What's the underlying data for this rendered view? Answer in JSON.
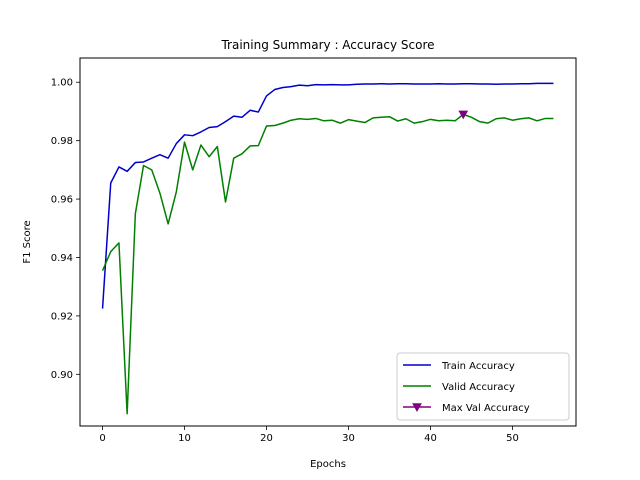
{
  "chart_data": {
    "type": "line",
    "title": "Training Summary : Accuracy Score",
    "xlabel": "Epochs",
    "ylabel": "F1 Score",
    "xlim": [
      -2.75,
      57.75
    ],
    "ylim": [
      0.8823,
      1.0083
    ],
    "xticks": [
      0,
      10,
      20,
      30,
      40,
      50
    ],
    "yticks": [
      0.9,
      0.92,
      0.94,
      0.96,
      0.98,
      1.0
    ],
    "ytick_labels": [
      "0.90",
      "0.92",
      "0.94",
      "0.96",
      "0.98",
      "1.00"
    ],
    "legend_position": "lower-right",
    "grid": false,
    "x": [
      0,
      1,
      2,
      3,
      4,
      5,
      6,
      7,
      8,
      9,
      10,
      11,
      12,
      13,
      14,
      15,
      16,
      17,
      18,
      19,
      20,
      21,
      22,
      23,
      24,
      25,
      26,
      27,
      28,
      29,
      30,
      31,
      32,
      33,
      34,
      35,
      36,
      37,
      38,
      39,
      40,
      41,
      42,
      43,
      44,
      45,
      46,
      47,
      48,
      49,
      50,
      51,
      52,
      53,
      54,
      55
    ],
    "series": [
      {
        "name": "Train Accuracy",
        "color": "#0000cc",
        "values": [
          0.9225,
          0.9655,
          0.971,
          0.9695,
          0.9725,
          0.9727,
          0.974,
          0.9752,
          0.974,
          0.979,
          0.982,
          0.9817,
          0.983,
          0.9845,
          0.9848,
          0.9865,
          0.9884,
          0.988,
          0.9904,
          0.9898,
          0.9953,
          0.9975,
          0.9982,
          0.9985,
          0.999,
          0.9988,
          0.9992,
          0.9991,
          0.9992,
          0.9991,
          0.9991,
          0.9993,
          0.9994,
          0.9994,
          0.9995,
          0.9994,
          0.9995,
          0.9995,
          0.9994,
          0.9994,
          0.9994,
          0.9995,
          0.9994,
          0.9994,
          0.9995,
          0.9995,
          0.9994,
          0.9994,
          0.9993,
          0.9994,
          0.9994,
          0.9995,
          0.9995,
          0.9996,
          0.9996,
          0.9996
        ]
      },
      {
        "name": "Valid Accuracy",
        "color": "#008000",
        "values": [
          0.9355,
          0.942,
          0.945,
          0.8865,
          0.955,
          0.9715,
          0.97,
          0.962,
          0.9515,
          0.9625,
          0.9795,
          0.97,
          0.9785,
          0.9745,
          0.978,
          0.959,
          0.974,
          0.9755,
          0.9782,
          0.9783,
          0.985,
          0.9852,
          0.986,
          0.987,
          0.9875,
          0.9873,
          0.9876,
          0.9868,
          0.987,
          0.986,
          0.9872,
          0.9867,
          0.9862,
          0.9878,
          0.988,
          0.9882,
          0.9867,
          0.9875,
          0.986,
          0.9865,
          0.9873,
          0.9868,
          0.987,
          0.9868,
          0.989,
          0.988,
          0.9865,
          0.986,
          0.9875,
          0.9878,
          0.987,
          0.9875,
          0.9878,
          0.9868,
          0.9876,
          0.9876
        ]
      }
    ],
    "markers": [
      {
        "name": "Max Val Accuracy",
        "color": "#800080",
        "symbol": "triangle-down",
        "x": 44,
        "y": 0.989
      }
    ]
  }
}
